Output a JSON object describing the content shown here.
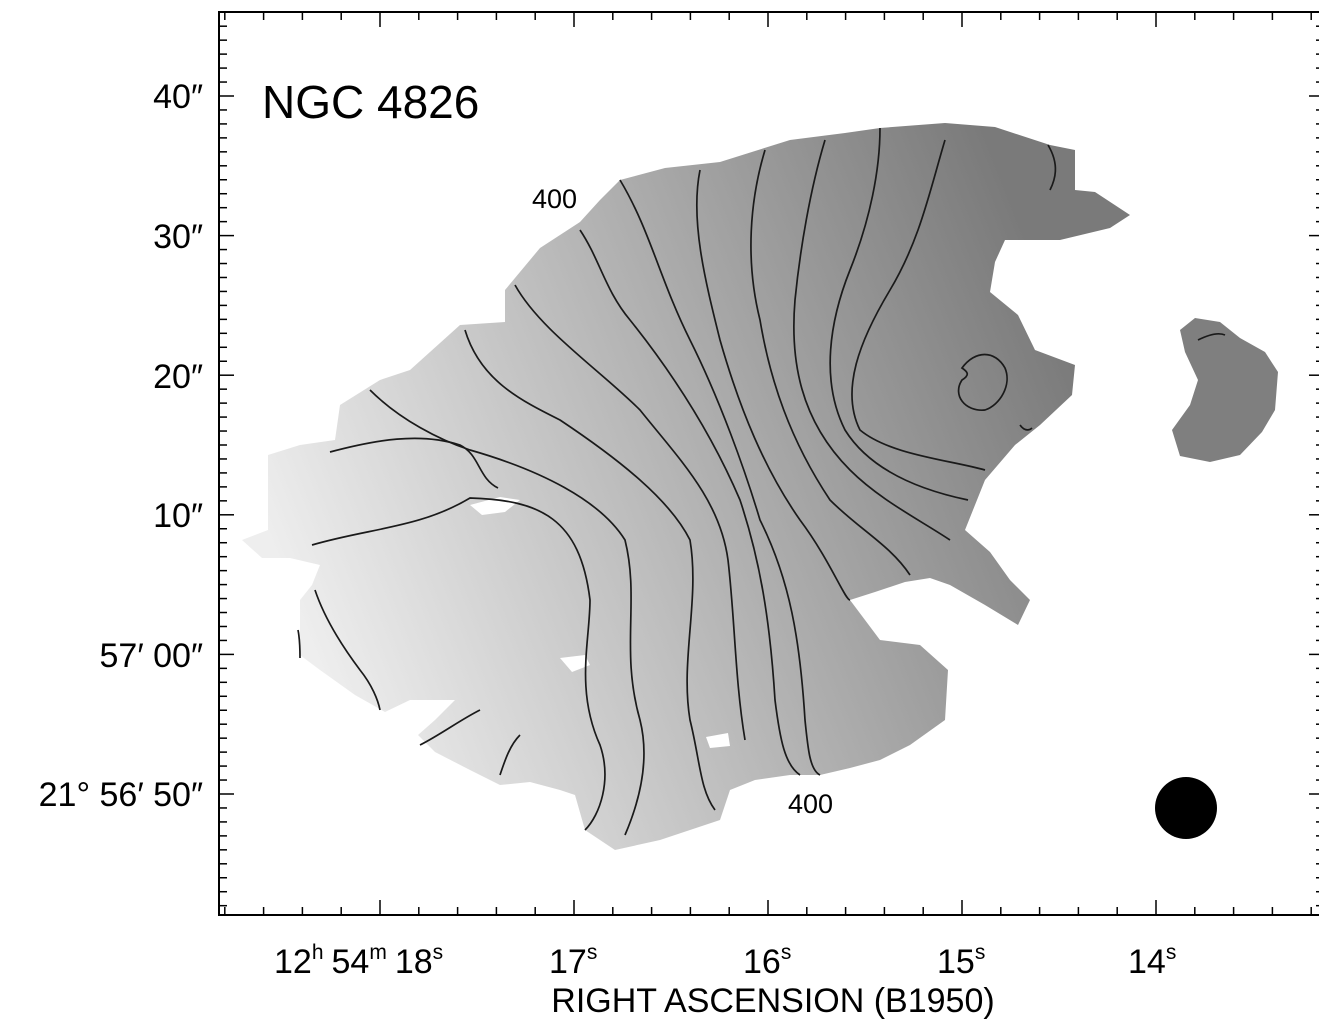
{
  "chart_data": {
    "type": "heatmap",
    "title": "NGC 4826",
    "xlabel": "RIGHT ASCENSION (B1950)",
    "ylabel": "",
    "x_ticks": [
      {
        "h": "12",
        "m": "54",
        "s": "18"
      },
      {
        "s": "17"
      },
      {
        "s": "16"
      },
      {
        "s": "15"
      },
      {
        "s": "14"
      }
    ],
    "y_ticks": [
      "40″",
      "30″",
      "20″",
      "10″",
      "57′ 00″",
      "21° 56′ 50″"
    ],
    "unit_marks": {
      "h": "h",
      "m": "m",
      "s": "s"
    },
    "contour_labels": [
      "400",
      "400"
    ],
    "colors": {
      "map_light": "#eeeeee",
      "map_mid": "#b4b4b4",
      "map_dark": "#7a7a7a",
      "contour": "#1a1a1a",
      "beam": "#000000"
    },
    "beam_marker": "filled-circle"
  }
}
